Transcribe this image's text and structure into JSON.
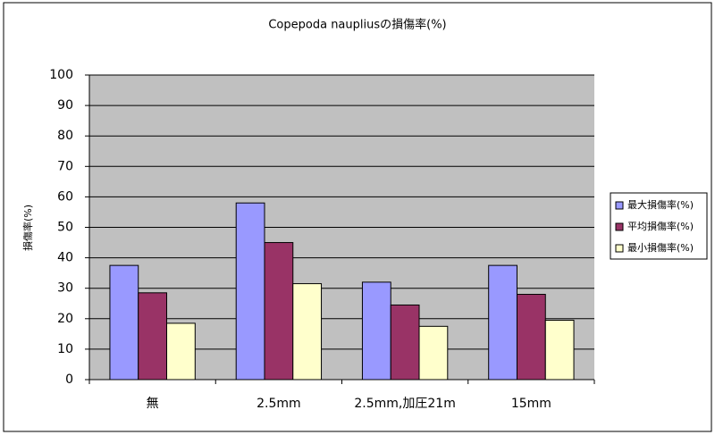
{
  "chart_data": {
    "type": "bar",
    "title": "Copepoda naupliusの損傷率(%)",
    "y_label": "損傷率(%)",
    "categories": [
      "無",
      "2.5mm",
      "2.5mm,加圧21m",
      "15mm"
    ],
    "series": [
      {
        "name": "最大損傷率(%)",
        "color": "#9999ff",
        "values": [
          37.5,
          58,
          32,
          37.5
        ]
      },
      {
        "name": "平均損傷率(%)",
        "color": "#993366",
        "values": [
          28.5,
          45,
          24.5,
          28
        ]
      },
      {
        "name": "最小損傷率(%)",
        "color": "#ffffcc",
        "values": [
          18.5,
          31.5,
          17.5,
          19.5
        ]
      }
    ],
    "ylim": [
      0,
      100
    ],
    "yticks": [
      0,
      10,
      20,
      30,
      40,
      50,
      60,
      70,
      80,
      90,
      100
    ],
    "grid": true,
    "legend": "right"
  }
}
